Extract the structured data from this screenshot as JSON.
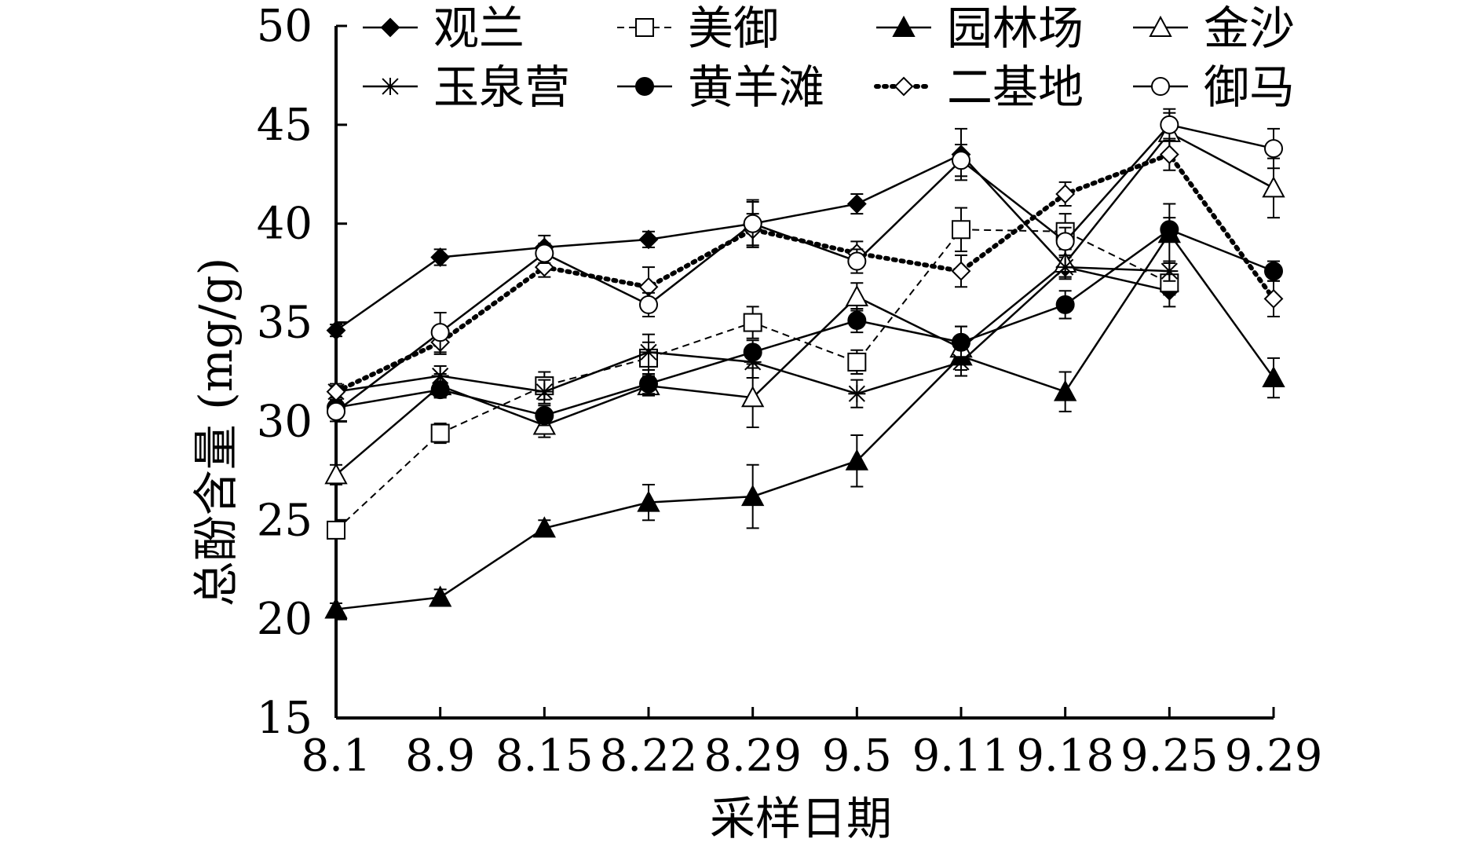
{
  "chart_data": {
    "type": "line",
    "xlabel": "采样日期",
    "ylabel": "总酚含量 (mg/g)",
    "categories": [
      "8.1",
      "8.9",
      "8.15",
      "8.22",
      "8.29",
      "9.5",
      "9.11",
      "9.18",
      "9.25",
      "9.29"
    ],
    "ylim": [
      15,
      50
    ],
    "yticks": [
      15,
      20,
      25,
      30,
      35,
      40,
      45,
      50
    ],
    "grid": false,
    "legend_position": "top",
    "series": [
      {
        "name": "观兰",
        "marker": "filled-diamond",
        "dash": "solid",
        "values": [
          34.6,
          38.3,
          38.8,
          39.2,
          40.0,
          41.0,
          43.5,
          37.8,
          36.6,
          null
        ],
        "errors": [
          0.3,
          0.4,
          0.6,
          0.4,
          1.2,
          0.5,
          1.3,
          0.5,
          0.8,
          null
        ]
      },
      {
        "name": "美御",
        "marker": "open-square",
        "dash": "dashed",
        "values": [
          24.5,
          29.4,
          31.8,
          33.2,
          35.0,
          33.0,
          39.7,
          39.6,
          37.0,
          null
        ],
        "errors": [
          0.3,
          0.5,
          0.7,
          0.8,
          0.8,
          0.6,
          1.1,
          0.9,
          0.6,
          null
        ]
      },
      {
        "name": "园林场",
        "marker": "filled-triangle",
        "dash": "solid",
        "values": [
          20.5,
          21.1,
          24.6,
          25.9,
          26.2,
          28.0,
          33.3,
          31.5,
          39.5,
          32.2
        ],
        "errors": [
          0.3,
          0.4,
          0.4,
          0.9,
          1.6,
          1.3,
          1.0,
          1.0,
          1.5,
          1.0
        ]
      },
      {
        "name": "金沙",
        "marker": "open-triangle",
        "dash": "solid",
        "values": [
          27.3,
          31.8,
          29.8,
          31.8,
          31.2,
          36.3,
          33.7,
          38.0,
          44.6,
          41.8
        ],
        "errors": [
          0.5,
          0.6,
          0.6,
          0.5,
          1.5,
          0.7,
          1.1,
          0.7,
          1.0,
          1.5
        ]
      },
      {
        "name": "玉泉营",
        "marker": "asterisk",
        "dash": "solid",
        "values": [
          31.5,
          32.3,
          31.5,
          33.5,
          33.0,
          31.4,
          33.0,
          37.8,
          37.6,
          null
        ],
        "errors": [
          0.3,
          0.5,
          0.6,
          0.9,
          0.8,
          0.7,
          0.7,
          0.6,
          0.5,
          null
        ]
      },
      {
        "name": "黄羊滩",
        "marker": "filled-circle",
        "dash": "solid",
        "values": [
          30.7,
          31.6,
          30.3,
          31.9,
          33.5,
          35.1,
          34.0,
          35.9,
          39.7,
          37.6
        ],
        "errors": [
          0.4,
          0.4,
          0.5,
          0.5,
          0.6,
          0.6,
          0.8,
          0.7,
          0.6,
          0.5
        ]
      },
      {
        "name": "二基地",
        "marker": "open-diamond",
        "dash": "dotted",
        "values": [
          31.5,
          34.0,
          37.8,
          36.8,
          39.7,
          38.5,
          37.6,
          41.5,
          43.5,
          36.2
        ],
        "errors": [
          0.4,
          0.6,
          0.5,
          1.0,
          0.8,
          0.6,
          0.8,
          0.6,
          0.8,
          0.9
        ]
      },
      {
        "name": "御马",
        "marker": "open-circle",
        "dash": "solid",
        "values": [
          30.5,
          34.5,
          38.5,
          35.9,
          40.0,
          38.1,
          43.2,
          39.1,
          45.0,
          43.8
        ],
        "errors": [
          0.5,
          1.0,
          0.5,
          0.6,
          1.1,
          0.6,
          0.8,
          0.7,
          0.8,
          1.0
        ]
      }
    ]
  }
}
